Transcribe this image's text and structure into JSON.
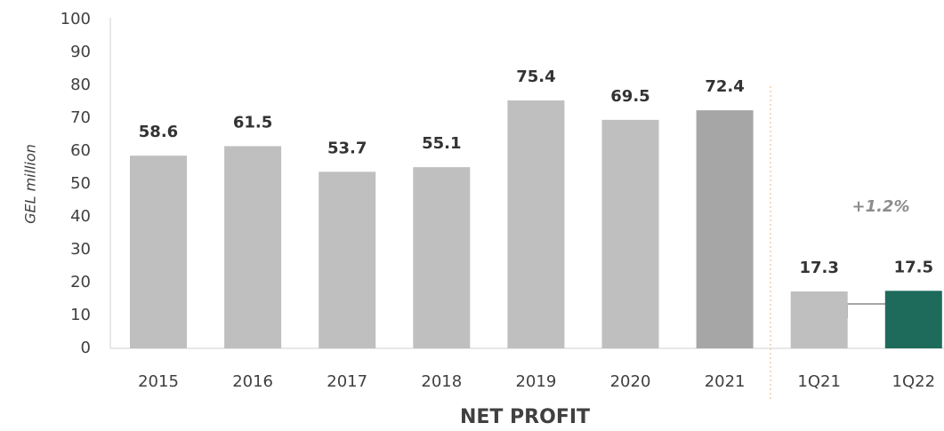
{
  "chart_data": {
    "type": "bar",
    "title": "NET PROFIT",
    "y_label": "GEL million",
    "categories": [
      "2015",
      "2016",
      "2017",
      "2018",
      "2019",
      "2020",
      "2021",
      "1Q21",
      "1Q22"
    ],
    "values": [
      58.6,
      61.5,
      53.7,
      55.1,
      75.4,
      69.5,
      72.4,
      17.3,
      17.5
    ],
    "colors": [
      "#bfbfbf",
      "#bfbfbf",
      "#bfbfbf",
      "#bfbfbf",
      "#bfbfbf",
      "#bfbfbf",
      "#a6a6a6",
      "#bfbfbf",
      "#1e6b5c"
    ],
    "ylim": [
      0,
      100
    ],
    "yticks": [
      0,
      10,
      20,
      30,
      40,
      50,
      60,
      70,
      80,
      90,
      100
    ],
    "grid": false,
    "annotation": "+1.2%"
  }
}
